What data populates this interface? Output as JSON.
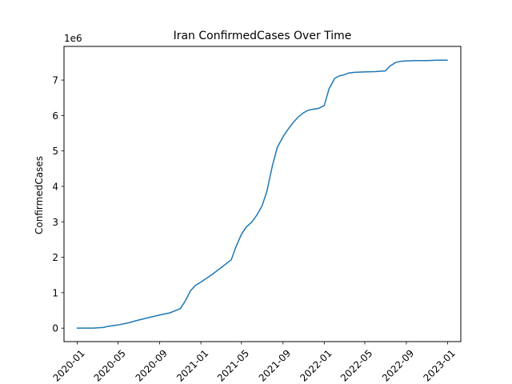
{
  "chart_data": {
    "type": "line",
    "title": "Iran  ConfirmedCases Over Time",
    "xlabel": "",
    "ylabel": "ConfirmedCases",
    "y_multiplier_label": "1e6",
    "x_ticks": [
      "2020-01",
      "2020-05",
      "2020-09",
      "2021-01",
      "2021-05",
      "2021-09",
      "2022-01",
      "2022-05",
      "2022-09",
      "2023-01"
    ],
    "y_ticks": [
      0,
      1,
      2,
      3,
      4,
      5,
      6,
      7
    ],
    "xlim": [
      "2019-11-23",
      "2023-02-09"
    ],
    "ylim": [
      -0.38,
      7.95
    ],
    "grid": false,
    "legend": "none",
    "line_color": "#1f77b4",
    "series": [
      {
        "x": [
          "2020-01-01",
          "2020-02-19",
          "2020-03-20",
          "2020-04-01",
          "2020-05-01",
          "2020-06-01",
          "2020-07-01",
          "2020-08-01",
          "2020-09-01",
          "2020-10-01",
          "2020-11-01",
          "2020-11-15",
          "2020-12-01",
          "2020-12-15",
          "2021-01-01",
          "2021-02-01",
          "2021-03-01",
          "2021-04-01",
          "2021-04-15",
          "2021-05-01",
          "2021-05-15",
          "2021-06-01",
          "2021-06-15",
          "2021-07-01",
          "2021-07-15",
          "2021-08-01",
          "2021-08-15",
          "2021-09-01",
          "2021-09-15",
          "2021-10-01",
          "2021-10-15",
          "2021-11-01",
          "2021-11-15",
          "2021-12-01",
          "2021-12-15",
          "2022-01-01",
          "2022-01-15",
          "2022-02-01",
          "2022-02-15",
          "2022-03-01",
          "2022-03-15",
          "2022-04-01",
          "2022-05-01",
          "2022-06-01",
          "2022-07-01",
          "2022-07-15",
          "2022-08-01",
          "2022-08-15",
          "2022-09-01",
          "2022-10-01",
          "2022-11-01",
          "2022-12-01",
          "2022-12-31"
        ],
        "values": [
          0,
          0,
          0.02,
          0.05,
          0.09,
          0.15,
          0.23,
          0.3,
          0.37,
          0.43,
          0.55,
          0.75,
          1.05,
          1.2,
          1.3,
          1.5,
          1.7,
          1.93,
          2.3,
          2.65,
          2.85,
          3.0,
          3.18,
          3.45,
          3.85,
          4.6,
          5.1,
          5.4,
          5.6,
          5.8,
          5.95,
          6.08,
          6.15,
          6.18,
          6.2,
          6.28,
          6.75,
          7.05,
          7.12,
          7.15,
          7.2,
          7.22,
          7.23,
          7.24,
          7.26,
          7.4,
          7.5,
          7.53,
          7.54,
          7.55,
          7.55,
          7.56,
          7.56
        ]
      }
    ]
  }
}
